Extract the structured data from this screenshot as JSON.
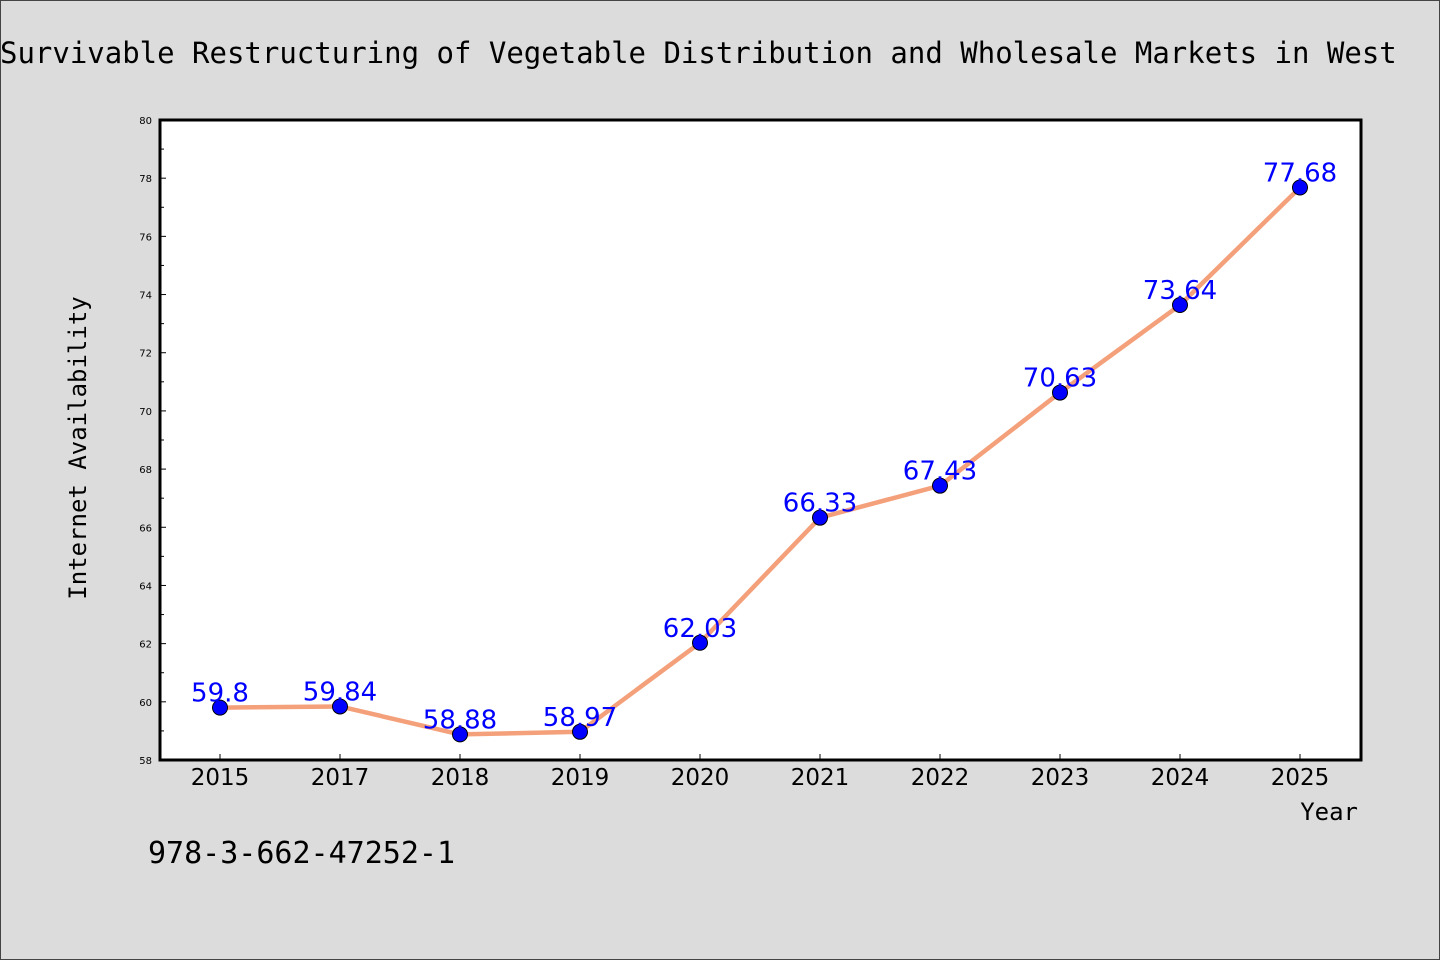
{
  "title": "Survivable Restructuring of Vegetable Distribution and Wholesale Markets in West",
  "isbn": "978-3-662-47252-1",
  "colors": {
    "background": "#dcdcdc",
    "plot_background": "#ffffff",
    "line": "#f4a07a",
    "marker": "#0000ff",
    "data_label": "#0000ff"
  },
  "chart_data": {
    "type": "line",
    "title": "Survivable Restructuring of Vegetable Distribution and Wholesale Markets in West",
    "xlabel": "Year",
    "ylabel": "Internet Availability",
    "categories": [
      "2015",
      "2017",
      "2018",
      "2019",
      "2020",
      "2021",
      "2022",
      "2023",
      "2024",
      "2025"
    ],
    "values": [
      59.8,
      59.84,
      58.88,
      58.97,
      62.03,
      66.33,
      67.43,
      70.63,
      73.64,
      77.68
    ],
    "data_labels": [
      "59.8",
      "59.84",
      "58.88",
      "58.97",
      "62.03",
      "66.33",
      "67.43",
      "70.63",
      "73.64",
      "77.68"
    ],
    "ylim": [
      58,
      80
    ],
    "yticks": [
      58,
      60,
      62,
      64,
      66,
      68,
      70,
      72,
      74,
      76,
      78,
      80
    ],
    "grid": false,
    "legend": "none"
  }
}
